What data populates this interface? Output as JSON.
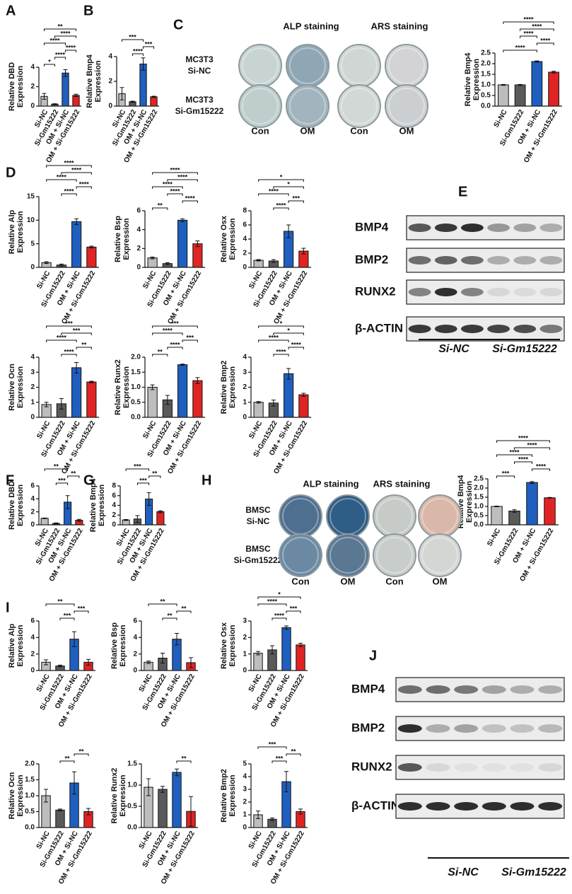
{
  "figure": {
    "panel_labels": [
      "A",
      "B",
      "C",
      "D",
      "E",
      "F",
      "G",
      "H",
      "I",
      "J"
    ],
    "c_staining": {
      "headers": [
        "ALP staining",
        "ARS staining"
      ],
      "rows": [
        [
          "MC3T3",
          "Si-NC"
        ],
        [
          "MC3T3",
          "Si-Gm15222"
        ]
      ],
      "columns": [
        "Con",
        "OM",
        "Con",
        "OM"
      ]
    },
    "h_staining": {
      "headers": [
        "ALP staining",
        "ARS staining"
      ],
      "rows": [
        [
          "BMSC",
          "Si-NC"
        ],
        [
          "BMSC",
          "Si-Gm15222"
        ]
      ],
      "columns": [
        "Con",
        "OM",
        "Con",
        "OM"
      ]
    },
    "e_blot": {
      "proteins": [
        "BMP4",
        "BMP2",
        "RUNX2",
        "β-ACTIN"
      ],
      "groups": [
        "Si-NC",
        "Si-Gm15222"
      ]
    },
    "j_blot": {
      "proteins": [
        "BMP4",
        "BMP2",
        "RUNX2",
        "β-ACTIN"
      ],
      "groups": [
        "Si-NC",
        "Si-Gm15222"
      ]
    }
  },
  "chart_data": [
    {
      "type": "bar",
      "ylabel": [
        "Relative DBD",
        "Expression"
      ],
      "categories": [
        "Si-NC",
        "Si-Gm15222",
        "OM + Si-NC",
        "OM + Si-Gm15222"
      ],
      "colors": [
        "#bdbdbd",
        "#5a5a5a",
        "#1f5fbf",
        "#e02424"
      ],
      "values": [
        1.0,
        0.2,
        3.4,
        1.1
      ],
      "errors": [
        0.3,
        0.05,
        0.35,
        0.12
      ],
      "ylim": [
        0,
        4
      ],
      "yticks": [
        0,
        2,
        4
      ],
      "brackets": [
        [
          "*",
          "Si-NC",
          "Si-Gm15222"
        ],
        [
          "****",
          "Si-Gm15222",
          "OM + Si-NC"
        ],
        [
          "****",
          "OM + Si-NC",
          "OM + Si-Gm15222"
        ],
        [
          "****",
          "Si-NC",
          "OM + Si-NC"
        ],
        [
          "****",
          "Si-Gm15222",
          "OM + Si-Gm15222"
        ],
        [
          "**",
          "Si-NC",
          "OM + Si-Gm15222"
        ]
      ]
    },
    {
      "type": "bar",
      "ylabel": [
        "Relative Bmp4",
        "Expression"
      ],
      "categories": [
        "Si-NC",
        "Si-Gm15222",
        "OM + Si-NC",
        "OM + Si-Gm15222"
      ],
      "colors": [
        "#bdbdbd",
        "#5a5a5a",
        "#1f5fbf",
        "#e02424"
      ],
      "values": [
        1.0,
        0.35,
        3.4,
        0.75
      ],
      "errors": [
        0.5,
        0.05,
        0.5,
        0.05
      ],
      "ylim": [
        0,
        4
      ],
      "yticks": [
        0,
        2,
        4
      ],
      "brackets": [
        [
          "****",
          "Si-Gm15222",
          "OM + Si-NC"
        ],
        [
          "***",
          "OM + Si-NC",
          "OM + Si-Gm15222"
        ],
        [
          "***",
          "Si-NC",
          "OM + Si-NC"
        ]
      ]
    },
    {
      "type": "bar",
      "ylabel": [
        "Relative Bmp4",
        "Expression"
      ],
      "categories": [
        "Si-NC",
        "Si-Gm15222",
        "OM + Si-NC",
        "OM + Si-Gm15222"
      ],
      "colors": [
        "#bdbdbd",
        "#5a5a5a",
        "#1f5fbf",
        "#e02424"
      ],
      "values": [
        1.0,
        1.0,
        2.1,
        1.6
      ],
      "errors": [
        0.02,
        0.02,
        0.03,
        0.04
      ],
      "ylim": [
        0,
        2.5
      ],
      "yticks": [
        {
          "value": 0,
          "label": "0.0"
        },
        0.5,
        {
          "value": 1,
          "label": "1.0"
        },
        1.5,
        {
          "value": 2,
          "label": "2.0"
        },
        2.5
      ],
      "brackets": [
        [
          "****",
          "Si-NC",
          "OM + Si-NC"
        ],
        [
          "****",
          "OM + Si-NC",
          "OM + Si-Gm15222"
        ],
        [
          "****",
          "Si-Gm15222",
          "OM + Si-NC"
        ],
        [
          "****",
          "Si-Gm15222",
          "OM + Si-Gm15222"
        ],
        [
          "****",
          "Si-NC",
          "OM + Si-Gm15222"
        ]
      ]
    },
    {
      "type": "bar",
      "ylabel": [
        "Relative Alp",
        "Expression"
      ],
      "categories": [
        "Si-NC",
        "Si-Gm15222",
        "OM + Si-NC",
        "OM + Si-Gm15222"
      ],
      "colors": [
        "#bdbdbd",
        "#5a5a5a",
        "#1f5fbf",
        "#e02424"
      ],
      "values": [
        1.0,
        0.5,
        9.7,
        4.3
      ],
      "errors": [
        0.2,
        0.2,
        0.6,
        0.2
      ],
      "ylim": [
        0,
        15
      ],
      "yticks": [
        0,
        5,
        10,
        15
      ],
      "brackets": [
        [
          "****",
          "Si-Gm15222",
          "OM + Si-NC"
        ],
        [
          "****",
          "OM + Si-NC",
          "OM + Si-Gm15222"
        ],
        [
          "****",
          "Si-NC",
          "OM + Si-NC"
        ],
        [
          "****",
          "Si-Gm15222",
          "OM + Si-Gm15222"
        ],
        [
          "****",
          "Si-NC",
          "OM + Si-Gm15222"
        ]
      ]
    },
    {
      "type": "bar",
      "ylabel": [
        "Relative Bsp",
        "Expression"
      ],
      "categories": [
        "Si-NC",
        "Si-Gm15222",
        "OM + Si-NC",
        "OM + Si-Gm15222"
      ],
      "colors": [
        "#bdbdbd",
        "#5a5a5a",
        "#1f5fbf",
        "#e02424"
      ],
      "values": [
        1.0,
        0.4,
        5.0,
        2.5
      ],
      "errors": [
        0.1,
        0.1,
        0.15,
        0.3
      ],
      "ylim": [
        0,
        6
      ],
      "yticks": [
        0,
        2,
        4,
        6
      ],
      "brackets": [
        [
          "**",
          "Si-NC",
          "Si-Gm15222"
        ],
        [
          "****",
          "OM + Si-NC",
          "OM + Si-Gm15222"
        ],
        [
          "****",
          "Si-Gm15222",
          "OM + Si-NC"
        ],
        [
          "****",
          "Si-NC",
          "OM + Si-NC"
        ],
        [
          "****",
          "Si-Gm15222",
          "OM + Si-Gm15222"
        ],
        [
          "****",
          "Si-NC",
          "OM + Si-Gm15222"
        ]
      ]
    },
    {
      "type": "bar",
      "ylabel": [
        "Relative Osx",
        "Expression"
      ],
      "categories": [
        "Si-NC",
        "Si-Gm15222",
        "OM + Si-NC",
        "OM + Si-Gm15222"
      ],
      "colors": [
        "#bdbdbd",
        "#5a5a5a",
        "#1f5fbf",
        "#e02424"
      ],
      "values": [
        1.0,
        0.9,
        5.1,
        2.3
      ],
      "errors": [
        0.1,
        0.2,
        0.9,
        0.4
      ],
      "ylim": [
        0,
        8
      ],
      "yticks": [
        0,
        2,
        4,
        6,
        8
      ],
      "brackets": [
        [
          "****",
          "Si-Gm15222",
          "OM + Si-NC"
        ],
        [
          "***",
          "OM + Si-NC",
          "OM + Si-Gm15222"
        ],
        [
          "****",
          "Si-NC",
          "OM + Si-NC"
        ],
        [
          "*",
          "Si-Gm15222",
          "OM + Si-Gm15222"
        ],
        [
          "*",
          "Si-NC",
          "OM + Si-Gm15222"
        ]
      ]
    },
    {
      "type": "bar",
      "ylabel": [
        "Relative Ocn",
        "Expression"
      ],
      "categories": [
        "Si-NC",
        "Si-Gm15222",
        "OM + Si-NC",
        "OM + Si-Gm15222"
      ],
      "colors": [
        "#bdbdbd",
        "#5a5a5a",
        "#1f5fbf",
        "#e02424"
      ],
      "values": [
        0.85,
        0.9,
        3.3,
        2.35
      ],
      "errors": [
        0.15,
        0.35,
        0.35,
        0.05
      ],
      "ylim": [
        0,
        4
      ],
      "yticks": [
        0,
        1,
        2,
        3,
        4
      ],
      "brackets": [
        [
          "****",
          "Si-Gm15222",
          "OM + Si-NC"
        ],
        [
          "**",
          "OM + Si-NC",
          "OM + Si-Gm15222"
        ],
        [
          "****",
          "Si-NC",
          "OM + Si-NC"
        ],
        [
          "***",
          "Si-Gm15222",
          "OM + Si-Gm15222"
        ],
        [
          "***",
          "Si-NC",
          "OM + Si-Gm15222"
        ]
      ]
    },
    {
      "type": "bar",
      "ylabel": [
        "Relative Runx2",
        "Expression"
      ],
      "categories": [
        "Si-NC",
        "Si-Gm15222",
        "OM + Si-NC",
        "OM + Si-Gm15222"
      ],
      "colors": [
        "#bdbdbd",
        "#5a5a5a",
        "#1f5fbf",
        "#e02424"
      ],
      "values": [
        1.0,
        0.58,
        1.75,
        1.22
      ],
      "errors": [
        0.08,
        0.15,
        0.02,
        0.1
      ],
      "ylim": [
        0,
        2
      ],
      "yticks": [
        {
          "value": 0,
          "label": "0.0"
        },
        0.5,
        {
          "value": 1,
          "label": "1.0"
        },
        1.5,
        {
          "value": 2,
          "label": "2.0"
        }
      ],
      "brackets": [
        [
          "**",
          "Si-NC",
          "Si-Gm15222"
        ],
        [
          "****",
          "Si-Gm15222",
          "OM + Si-NC"
        ],
        [
          "***",
          "OM + Si-NC",
          "OM + Si-Gm15222"
        ],
        [
          "****",
          "Si-NC",
          "OM + Si-NC"
        ],
        [
          "***",
          "Si-NC",
          "OM + Si-Gm15222"
        ]
      ]
    },
    {
      "type": "bar",
      "ylabel": [
        "Relative Bmp2",
        "Expression"
      ],
      "categories": [
        "Si-NC",
        "Si-Gm15222",
        "OM + Si-NC",
        "OM + Si-Gm15222"
      ],
      "colors": [
        "#bdbdbd",
        "#5a5a5a",
        "#1f5fbf",
        "#e02424"
      ],
      "values": [
        1.0,
        0.95,
        2.9,
        1.5
      ],
      "errors": [
        0.05,
        0.2,
        0.35,
        0.1
      ],
      "ylim": [
        0,
        4
      ],
      "yticks": [
        0,
        1,
        2,
        3,
        4
      ],
      "brackets": [
        [
          "****",
          "Si-Gm15222",
          "OM + Si-NC"
        ],
        [
          "****",
          "OM + Si-NC",
          "OM + Si-Gm15222"
        ],
        [
          "****",
          "Si-NC",
          "OM + Si-NC"
        ],
        [
          "*",
          "Si-Gm15222",
          "OM + Si-Gm15222"
        ],
        [
          "*",
          "Si-NC",
          "OM + Si-Gm15222"
        ]
      ]
    },
    {
      "type": "bar",
      "ylabel": [
        "Relative DBD",
        "Expression"
      ],
      "categories": [
        "Si-NC",
        "Si-Gm15222",
        "OM + Si-NC",
        "OM + Si-Gm15222"
      ],
      "colors": [
        "#bdbdbd",
        "#5a5a5a",
        "#1f5fbf",
        "#e02424"
      ],
      "values": [
        1.0,
        0.2,
        3.5,
        0.7
      ],
      "errors": [
        0.05,
        0.1,
        1.0,
        0.15
      ],
      "ylim": [
        0,
        6
      ],
      "yticks": [
        0,
        2,
        4,
        6
      ],
      "brackets": [
        [
          "***",
          "Si-Gm15222",
          "OM + Si-NC"
        ],
        [
          "**",
          "OM + Si-NC",
          "OM + Si-Gm15222"
        ],
        [
          "**",
          "Si-NC",
          "OM + Si-NC"
        ]
      ]
    },
    {
      "type": "bar",
      "ylabel": [
        "Relative Bmp4",
        "Expression"
      ],
      "categories": [
        "Si-NC",
        "Si-Gm15222",
        "OM + Si-NC",
        "OM + Si-Gm15222"
      ],
      "colors": [
        "#bdbdbd",
        "#5a5a5a",
        "#1f5fbf",
        "#e02424"
      ],
      "values": [
        1.0,
        1.2,
        5.3,
        2.7
      ],
      "errors": [
        0.1,
        0.7,
        1.3,
        0.2
      ],
      "ylim": [
        0,
        8
      ],
      "yticks": [
        0,
        2,
        4,
        6,
        8
      ],
      "brackets": [
        [
          "***",
          "Si-Gm15222",
          "OM + Si-NC"
        ],
        [
          "**",
          "OM + Si-NC",
          "OM + Si-Gm15222"
        ],
        [
          "***",
          "Si-NC",
          "OM + Si-NC"
        ]
      ]
    },
    {
      "type": "bar",
      "ylabel": [
        "Relative Bmp4",
        "Expression"
      ],
      "categories": [
        "Si-NC",
        "Si-Gm15222",
        "OM + Si-NC",
        "OM + Si-Gm15222"
      ],
      "colors": [
        "#bdbdbd",
        "#5a5a5a",
        "#1f5fbf",
        "#e02424"
      ],
      "values": [
        1.0,
        0.75,
        2.3,
        1.47
      ],
      "errors": [
        0.02,
        0.07,
        0.05,
        0.02
      ],
      "ylim": [
        0,
        2.5
      ],
      "yticks": [
        {
          "value": 0,
          "label": "0.0"
        },
        0.5,
        {
          "value": 1,
          "label": "1.0"
        },
        1.5,
        {
          "value": 2,
          "label": "2.0"
        },
        2.5
      ],
      "brackets": [
        [
          "***",
          "Si-NC",
          "Si-Gm15222"
        ],
        [
          "****",
          "OM + Si-NC",
          "OM + Si-Gm15222"
        ],
        [
          "****",
          "Si-Gm15222",
          "OM + Si-NC"
        ],
        [
          "****",
          "Si-NC",
          "OM + Si-NC"
        ],
        [
          "****",
          "Si-Gm15222",
          "OM + Si-Gm15222"
        ],
        [
          "****",
          "Si-NC",
          "OM + Si-Gm15222"
        ]
      ]
    },
    {
      "type": "bar",
      "ylabel": [
        "Relative Alp",
        "Expression"
      ],
      "categories": [
        "Si-NC",
        "Si-Gm15222",
        "OM + Si-NC",
        "OM + Si-Gm15222"
      ],
      "colors": [
        "#bdbdbd",
        "#5a5a5a",
        "#1f5fbf",
        "#e02424"
      ],
      "values": [
        1.0,
        0.55,
        3.8,
        1.0
      ],
      "errors": [
        0.3,
        0.1,
        0.9,
        0.35
      ],
      "ylim": [
        0,
        6
      ],
      "yticks": [
        0,
        2,
        4,
        6
      ],
      "brackets": [
        [
          "***",
          "Si-Gm15222",
          "OM + Si-NC"
        ],
        [
          "***",
          "OM + Si-NC",
          "OM + Si-Gm15222"
        ],
        [
          "**",
          "Si-NC",
          "OM + Si-NC"
        ]
      ]
    },
    {
      "type": "bar",
      "ylabel": [
        "Relative Bsp",
        "Expression"
      ],
      "categories": [
        "Si-NC",
        "Si-Gm15222",
        "OM + Si-NC",
        "OM + Si-Gm15222"
      ],
      "colors": [
        "#bdbdbd",
        "#5a5a5a",
        "#1f5fbf",
        "#e02424"
      ],
      "values": [
        1.0,
        1.5,
        3.8,
        0.95
      ],
      "errors": [
        0.15,
        0.6,
        0.7,
        0.6
      ],
      "ylim": [
        0,
        6
      ],
      "yticks": [
        0,
        2,
        4,
        6
      ],
      "brackets": [
        [
          "**",
          "Si-Gm15222",
          "OM + Si-NC"
        ],
        [
          "**",
          "OM + Si-NC",
          "OM + Si-Gm15222"
        ],
        [
          "**",
          "Si-NC",
          "OM + Si-NC"
        ]
      ]
    },
    {
      "type": "bar",
      "ylabel": [
        "Relative Osx",
        "Expression"
      ],
      "categories": [
        "Si-NC",
        "Si-Gm15222",
        "OM + Si-NC",
        "OM + Si-Gm15222"
      ],
      "colors": [
        "#bdbdbd",
        "#5a5a5a",
        "#1f5fbf",
        "#e02424"
      ],
      "values": [
        1.05,
        1.25,
        2.6,
        1.55
      ],
      "errors": [
        0.1,
        0.25,
        0.1,
        0.1
      ],
      "ylim": [
        0,
        3
      ],
      "yticks": [
        0,
        1,
        2,
        3
      ],
      "brackets": [
        [
          "****",
          "Si-Gm15222",
          "OM + Si-NC"
        ],
        [
          "***",
          "OM + Si-NC",
          "OM + Si-Gm15222"
        ],
        [
          "****",
          "Si-NC",
          "OM + Si-NC"
        ],
        [
          "*",
          "Si-NC",
          "OM + Si-Gm15222"
        ]
      ]
    },
    {
      "type": "bar",
      "ylabel": [
        "Relative Ocn",
        "Expression"
      ],
      "categories": [
        "Si-NC",
        "Si-Gm15222",
        "OM + Si-NC",
        "OM + Si-Gm15222"
      ],
      "colors": [
        "#bdbdbd",
        "#5a5a5a",
        "#1f5fbf",
        "#e02424"
      ],
      "values": [
        1.0,
        0.55,
        1.4,
        0.5
      ],
      "errors": [
        0.2,
        0.03,
        0.35,
        0.1
      ],
      "ylim": [
        0,
        2
      ],
      "yticks": [
        {
          "value": 0,
          "label": "0.0"
        },
        0.5,
        {
          "value": 1,
          "label": "1.0"
        },
        1.5,
        {
          "value": 2,
          "label": "2.0"
        }
      ],
      "brackets": [
        [
          "**",
          "Si-Gm15222",
          "OM + Si-NC"
        ],
        [
          "**",
          "OM + Si-NC",
          "OM + Si-Gm15222"
        ]
      ]
    },
    {
      "type": "bar",
      "ylabel": [
        "Relative Runx2",
        "Expression"
      ],
      "categories": [
        "Si-NC",
        "Si-Gm15222",
        "OM + Si-NC",
        "OM + Si-Gm15222"
      ],
      "colors": [
        "#bdbdbd",
        "#5a5a5a",
        "#1f5fbf",
        "#e02424"
      ],
      "values": [
        0.95,
        0.9,
        1.3,
        0.38
      ],
      "errors": [
        0.2,
        0.07,
        0.08,
        0.35
      ],
      "ylim": [
        0,
        1.5
      ],
      "yticks": [
        {
          "value": 0,
          "label": "0.0"
        },
        0.5,
        {
          "value": 1,
          "label": "1.0"
        },
        1.5
      ],
      "brackets": [
        [
          "**",
          "OM + Si-NC",
          "OM + Si-Gm15222"
        ]
      ]
    },
    {
      "type": "bar",
      "ylabel": [
        "Relative Bmp2",
        "Expression"
      ],
      "categories": [
        "Si-NC",
        "Si-Gm15222",
        "OM + Si-NC",
        "OM + Si-Gm15222"
      ],
      "colors": [
        "#bdbdbd",
        "#5a5a5a",
        "#1f5fbf",
        "#e02424"
      ],
      "values": [
        1.0,
        0.65,
        3.6,
        1.25
      ],
      "errors": [
        0.3,
        0.1,
        0.8,
        0.2
      ],
      "ylim": [
        0,
        5
      ],
      "yticks": [
        0,
        1,
        2,
        3,
        4,
        5
      ],
      "brackets": [
        [
          "***",
          "Si-Gm15222",
          "OM + Si-NC"
        ],
        [
          "**",
          "OM + Si-NC",
          "OM + Si-Gm15222"
        ],
        [
          "***",
          "Si-NC",
          "OM + Si-NC"
        ]
      ]
    }
  ]
}
